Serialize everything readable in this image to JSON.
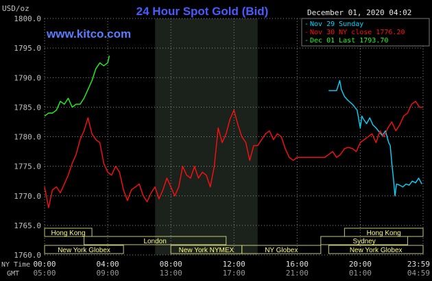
{
  "chart_data": {
    "type": "line",
    "title": "24 Hour Spot Gold (Bid)",
    "watermark": "www.kitco.com",
    "timestamp": "December 01, 2020 04:02",
    "ylabel": "USD/oz",
    "ylim": [
      1760,
      1800
    ],
    "yticks": [
      "1800.0",
      "1795.0",
      "1790.0",
      "1785.0",
      "1780.0",
      "1775.0",
      "1770.0",
      "1765.0",
      "1760.0"
    ],
    "ny_time_label": "NY Time",
    "gmt_label": "GMT",
    "ny_time_ticks": [
      "00:00",
      "04:00",
      "08:00",
      "12:00",
      "16:00",
      "20:00",
      "23:59"
    ],
    "gmt_ticks": [
      "05:00",
      "09:00",
      "13:00",
      "17:00",
      "21:00",
      "01:00",
      "04:59"
    ],
    "grid": true,
    "legend_position": "top-right",
    "colors": {
      "background": "#000000",
      "grid": "#8a8a8a",
      "shade": "#1b211b",
      "title": "#4a5cff",
      "watermark": "#5a7cff",
      "text": "#ffffff",
      "axis_text": "#c0c0c0"
    },
    "series": [
      {
        "name": "Nov 29 Sunday",
        "color": "#00d8ff",
        "x": [
          18.0,
          18.5,
          18.7,
          18.8,
          19.0,
          19.2,
          19.5,
          19.8,
          20.0,
          20.1,
          20.2,
          20.4,
          20.6,
          20.8,
          21.0,
          21.2,
          21.4,
          21.6,
          21.8,
          21.9,
          22.0,
          22.1,
          22.2,
          22.3,
          22.5,
          22.7,
          22.9,
          23.1,
          23.3,
          23.5,
          23.7,
          23.9
        ],
        "y": [
          1787.8,
          1787.8,
          1789.5,
          1788.0,
          1786.8,
          1786.2,
          1785.5,
          1784.5,
          1781.5,
          1783.5,
          1783.0,
          1782.2,
          1783.2,
          1782.0,
          1781.5,
          1780.8,
          1780.2,
          1781.0,
          1779.0,
          1778.5,
          1775.5,
          1773.0,
          1770.0,
          1772.0,
          1771.8,
          1771.5,
          1772.0,
          1771.8,
          1772.5,
          1772.2,
          1773.0,
          1772.0
        ]
      },
      {
        "name": "Nov 30 NY close 1776.20",
        "color": "#ff1010",
        "x": [
          0.0,
          0.25,
          0.5,
          0.75,
          1.0,
          1.25,
          1.5,
          1.75,
          2.0,
          2.25,
          2.5,
          2.75,
          3.0,
          3.25,
          3.5,
          3.75,
          4.0,
          4.25,
          4.5,
          4.75,
          5.0,
          5.25,
          5.5,
          5.75,
          6.0,
          6.25,
          6.5,
          6.75,
          7.0,
          7.25,
          7.5,
          7.75,
          8.0,
          8.25,
          8.5,
          8.75,
          9.0,
          9.25,
          9.5,
          9.75,
          10.0,
          10.25,
          10.5,
          10.75,
          11.0,
          11.25,
          11.5,
          11.75,
          12.0,
          12.25,
          12.5,
          12.75,
          13.0,
          13.25,
          13.5,
          13.75,
          14.0,
          14.25,
          14.5,
          14.75,
          15.0,
          15.25,
          15.5,
          15.75,
          16.0,
          16.25,
          16.5,
          16.75,
          17.0,
          17.25,
          17.5,
          17.75,
          18.0,
          18.25,
          18.5,
          18.75,
          19.0,
          19.25,
          19.5,
          19.75,
          20.0,
          20.25,
          20.5,
          20.75,
          21.0,
          21.25,
          21.5,
          21.75,
          22.0,
          22.25,
          22.5,
          22.75,
          23.0,
          23.25,
          23.5,
          23.75,
          23.98
        ],
        "y": [
          1771.5,
          1768.0,
          1771.0,
          1771.5,
          1770.5,
          1772.0,
          1773.5,
          1775.5,
          1777.0,
          1779.5,
          1781.0,
          1783.2,
          1780.5,
          1779.5,
          1779.0,
          1775.5,
          1774.0,
          1773.5,
          1775.0,
          1774.0,
          1771.0,
          1769.2,
          1771.0,
          1771.5,
          1772.0,
          1770.0,
          1769.0,
          1770.5,
          1771.5,
          1769.5,
          1771.0,
          1773.0,
          1771.5,
          1770.0,
          1771.5,
          1775.0,
          1773.5,
          1773.0,
          1775.0,
          1773.0,
          1774.0,
          1773.5,
          1771.5,
          1775.0,
          1781.5,
          1779.0,
          1780.5,
          1783.0,
          1784.5,
          1782.0,
          1780.0,
          1779.0,
          1776.0,
          1778.5,
          1778.5,
          1779.5,
          1780.5,
          1781.0,
          1779.5,
          1780.5,
          1780.0,
          1778.0,
          1776.5,
          1776.0,
          1776.5,
          1776.5,
          1776.5,
          1776.5,
          1776.5,
          1776.5,
          1776.5,
          1776.5,
          1777.0,
          1777.5,
          1776.5,
          1777.0,
          1778.0,
          1778.2,
          1778.0,
          1777.5,
          1779.0,
          1779.5,
          1780.0,
          1780.5,
          1779.0,
          1781.0,
          1780.0,
          1781.5,
          1782.5,
          1781.0,
          1782.0,
          1783.5,
          1784.0,
          1785.5,
          1786.0,
          1785.0,
          1785.0
        ]
      },
      {
        "name": "Dec 01 Last 1793.70",
        "color": "#1aff1a",
        "x": [
          0.0,
          0.25,
          0.5,
          0.75,
          1.0,
          1.25,
          1.5,
          1.75,
          2.0,
          2.25,
          2.5,
          2.75,
          3.0,
          3.25,
          3.5,
          3.75,
          4.0,
          4.1
        ],
        "y": [
          1783.5,
          1784.0,
          1784.0,
          1784.5,
          1786.0,
          1785.5,
          1786.5,
          1785.0,
          1785.5,
          1785.5,
          1786.5,
          1788.0,
          1789.5,
          1791.5,
          1792.5,
          1792.0,
          1792.5,
          1793.7
        ]
      }
    ],
    "sessions": [
      {
        "label": "Hong Kong",
        "row": 0,
        "start": 0.0,
        "end": 3.0
      },
      {
        "label": "Hong Kong",
        "row": 0,
        "start": 19.0,
        "end": 23.98
      },
      {
        "label": "London",
        "row": 1,
        "start": 2.5,
        "end": 11.5
      },
      {
        "label": "Sydney",
        "row": 1,
        "start": 17.5,
        "end": 23.0
      },
      {
        "label": "New York Globex",
        "row": 2,
        "start": 0.0,
        "end": 5.0
      },
      {
        "label": "New York NYMEX",
        "row": 2,
        "start": 8.0,
        "end": 12.5
      },
      {
        "label": "NY Globex",
        "row": 2,
        "start": 12.5,
        "end": 17.5
      },
      {
        "label": "New York Globex",
        "row": 2,
        "start": 18.0,
        "end": 23.98
      }
    ],
    "shaded_range": [
      7.0,
      13.5
    ]
  }
}
